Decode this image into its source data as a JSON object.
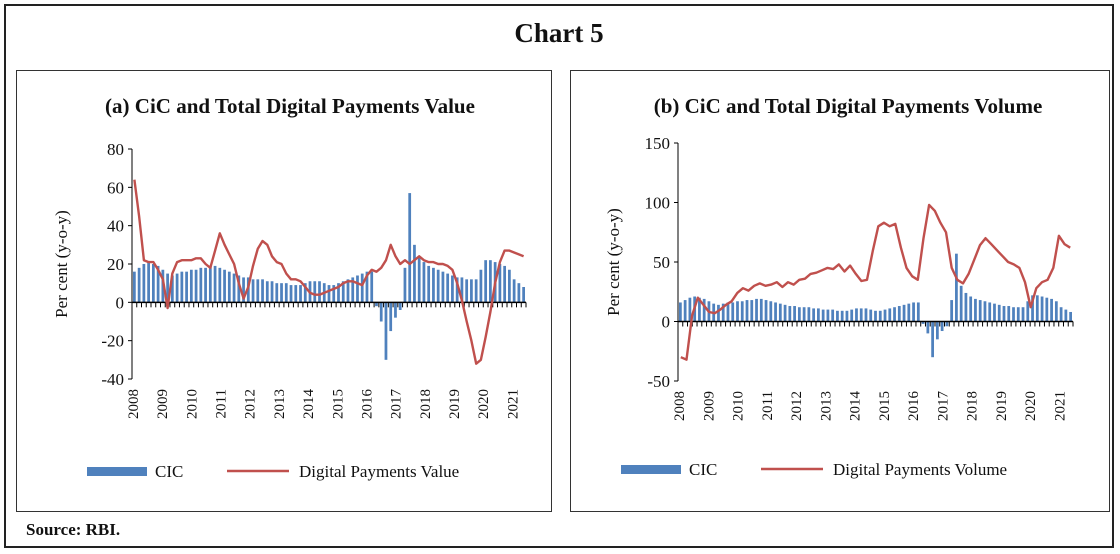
{
  "figure": {
    "title": "Chart 5",
    "source": "Source: RBI."
  },
  "colors": {
    "cic": "#4f81bd",
    "digital": "#c0504d",
    "axis": "#000000"
  },
  "chart_data": [
    {
      "type": "bar+line",
      "title": "(a) CiC and Total Digital Payments Value",
      "ylabel": "Per cent (y-o-y)",
      "xlabel": "",
      "ylim": [
        -40,
        80
      ],
      "yticks": [
        -40,
        -20,
        0,
        20,
        40,
        60,
        80
      ],
      "xticks": [
        "2008",
        "2009",
        "2010",
        "2011",
        "2012",
        "2013",
        "2014",
        "2015",
        "2016",
        "2017",
        "2018",
        "2019",
        "2020",
        "2021"
      ],
      "grid": false,
      "legend": "bottom",
      "series": [
        {
          "name": "CIC",
          "kind": "bar",
          "values": [
            16,
            18,
            20,
            21,
            20,
            19,
            17,
            15,
            14,
            15,
            16,
            16,
            17,
            17,
            18,
            18,
            19,
            19,
            18,
            17,
            16,
            15,
            14,
            13,
            13,
            12,
            12,
            12,
            11,
            11,
            10,
            10,
            10,
            9,
            9,
            9,
            10,
            11,
            11,
            11,
            10,
            9,
            9,
            10,
            11,
            12,
            13,
            14,
            15,
            16,
            16,
            -2,
            -10,
            -30,
            -15,
            -8,
            -4,
            18,
            57,
            30,
            24,
            21,
            19,
            18,
            17,
            16,
            15,
            14,
            13,
            13,
            12,
            12,
            12,
            17,
            22,
            22,
            21,
            20,
            19,
            17,
            12,
            10,
            8
          ]
        },
        {
          "name": "Digital Payments Value",
          "kind": "line",
          "values": [
            64,
            45,
            22,
            21,
            21,
            17,
            12,
            -3,
            15,
            21,
            22,
            22,
            22,
            23,
            23,
            20,
            18,
            27,
            36,
            30,
            25,
            20,
            10,
            2,
            8,
            19,
            28,
            32,
            30,
            24,
            21,
            20,
            15,
            12,
            12,
            11,
            8,
            5,
            4,
            4,
            5,
            6,
            7,
            8,
            10,
            11,
            11,
            10,
            9,
            14,
            17,
            16,
            18,
            22,
            30,
            24,
            20,
            22,
            20,
            22,
            24,
            22,
            21,
            21,
            20,
            20,
            19,
            17,
            10,
            1,
            -10,
            -20,
            -32,
            -30,
            -18,
            -5,
            10,
            21,
            27,
            27,
            26,
            25,
            24
          ]
        }
      ]
    },
    {
      "type": "bar+line",
      "title": "(b) CiC and Total Digital Payments Volume",
      "ylabel": "Per cent (y-o-y)",
      "xlabel": "",
      "ylim": [
        -50,
        150
      ],
      "yticks": [
        -50,
        0,
        50,
        100,
        150
      ],
      "xticks": [
        "2008",
        "2009",
        "2010",
        "2011",
        "2012",
        "2013",
        "2014",
        "2015",
        "2016",
        "2017",
        "2018",
        "2019",
        "2020",
        "2021"
      ],
      "grid": false,
      "legend": "bottom",
      "series": [
        {
          "name": "CIC",
          "kind": "bar",
          "values": [
            16,
            18,
            20,
            21,
            20,
            19,
            17,
            15,
            14,
            15,
            16,
            16,
            17,
            17,
            18,
            18,
            19,
            19,
            18,
            17,
            16,
            15,
            14,
            13,
            13,
            12,
            12,
            12,
            11,
            11,
            10,
            10,
            10,
            9,
            9,
            9,
            10,
            11,
            11,
            11,
            10,
            9,
            9,
            10,
            11,
            12,
            13,
            14,
            15,
            16,
            16,
            -2,
            -10,
            -30,
            -15,
            -8,
            -4,
            18,
            57,
            30,
            24,
            21,
            19,
            18,
            17,
            16,
            15,
            14,
            13,
            13,
            12,
            12,
            12,
            17,
            22,
            22,
            21,
            20,
            19,
            17,
            12,
            10,
            8
          ]
        },
        {
          "name": "Digital Payments Volume",
          "kind": "line",
          "values": [
            -30,
            -32,
            5,
            20,
            14,
            8,
            7,
            10,
            14,
            17,
            24,
            28,
            26,
            30,
            32,
            30,
            31,
            33,
            29,
            33,
            31,
            35,
            36,
            40,
            41,
            43,
            45,
            44,
            48,
            42,
            47,
            40,
            34,
            35,
            59,
            80,
            83,
            80,
            82,
            62,
            45,
            38,
            35,
            70,
            98,
            93,
            83,
            75,
            45,
            35,
            32,
            40,
            52,
            64,
            70,
            65,
            60,
            55,
            50,
            48,
            45,
            33,
            12,
            28,
            33,
            35,
            45,
            72,
            65,
            62
          ]
        }
      ]
    }
  ]
}
